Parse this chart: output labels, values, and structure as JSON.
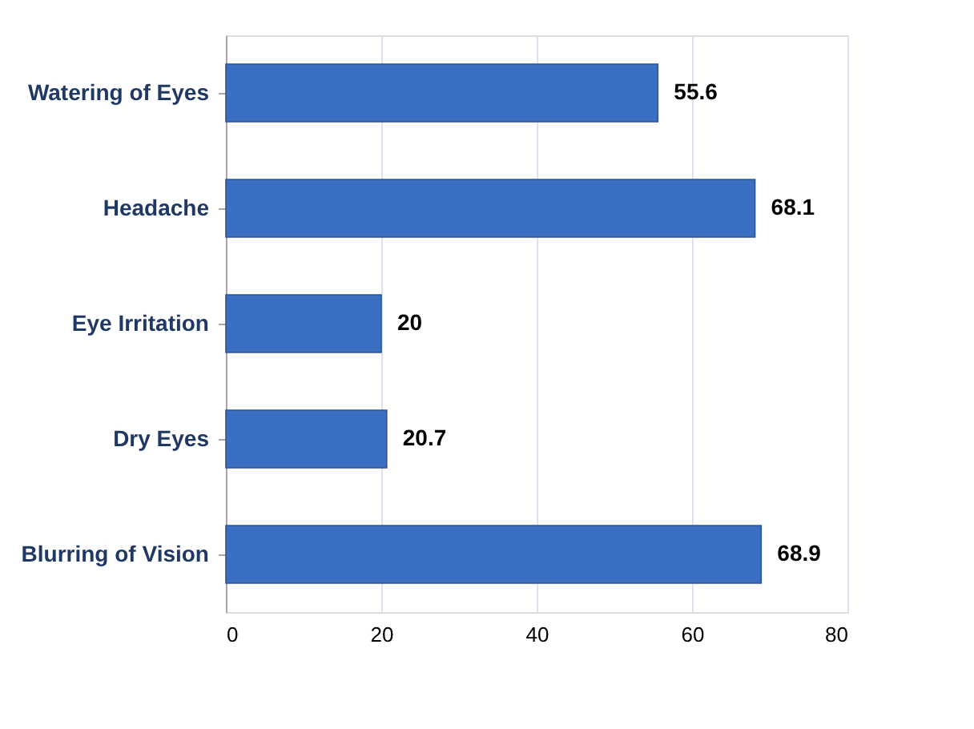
{
  "chart_data": {
    "type": "bar",
    "orientation": "horizontal",
    "categories": [
      "Watering of Eyes",
      "Headache",
      "Eye Irritation",
      "Dry Eyes",
      "Blurring of Vision"
    ],
    "values": [
      55.6,
      68.1,
      20,
      20.7,
      68.9
    ],
    "color": "#3b6fc2",
    "xlim": [
      0,
      80
    ],
    "xticks": [
      0,
      20,
      40,
      60,
      80
    ],
    "grid": "x",
    "data_labels": true
  }
}
